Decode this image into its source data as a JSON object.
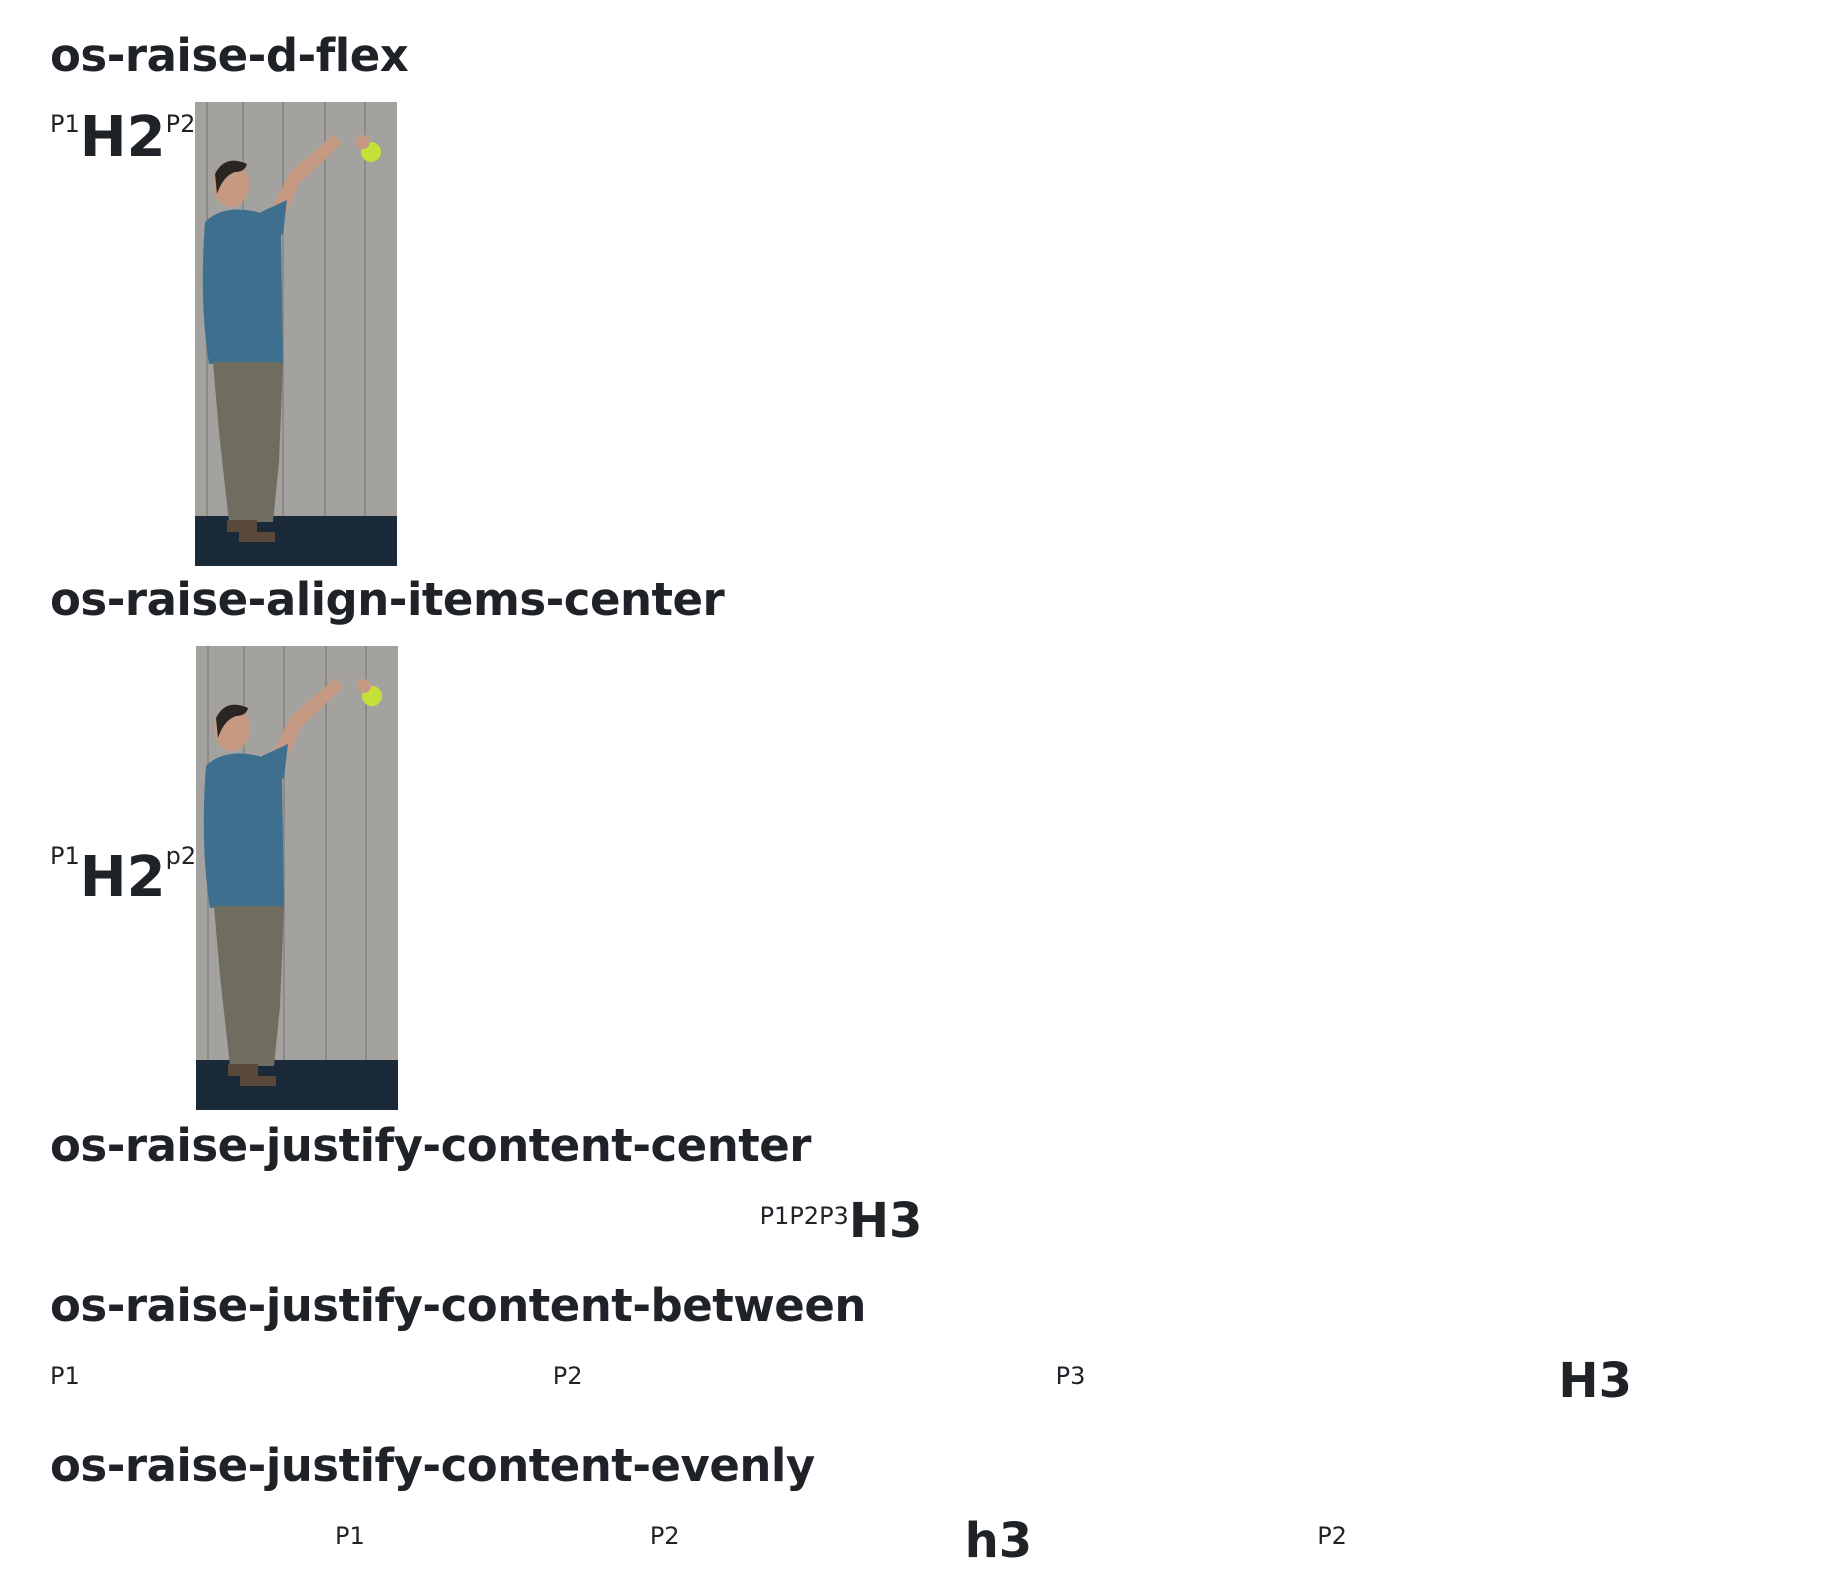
{
  "sections": {
    "d_flex": {
      "title": "os-raise-d-flex",
      "p1": "P1",
      "h2": "H2",
      "p2": "P2"
    },
    "align_items_center": {
      "title": "os-raise-align-items-center",
      "p1": "P1",
      "h2": "H2",
      "p2": "p2"
    },
    "justify_center": {
      "title": "os-raise-justify-content-center",
      "p1": "P1",
      "p2": "P2",
      "p3": "P3",
      "h3": "H3"
    },
    "justify_between": {
      "title": "os-raise-justify-content-between",
      "p1": "P1",
      "p2": "P2",
      "p3": "P3",
      "h3": "H3"
    },
    "justify_evenly": {
      "title": "os-raise-justify-content-evenly",
      "p1": "P1",
      "p2": "P2",
      "h3": "h3",
      "p4": "P2"
    }
  },
  "image": {
    "icon": "man-raising-ball-photo",
    "colors": {
      "wall": "#9e9d9a",
      "shirt": "#3f6f8f",
      "pants": "#6b6a5c",
      "ground": "#1a2a3a",
      "ball": "#c6e03a"
    }
  }
}
